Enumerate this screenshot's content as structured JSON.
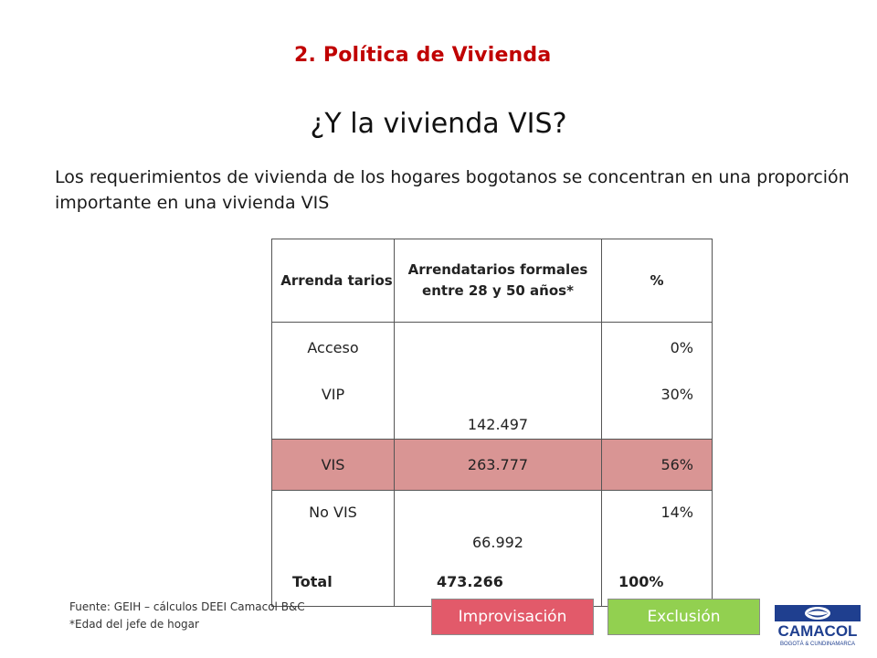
{
  "section_title": "2. Política de Vivienda",
  "main_title": "¿Y la vivienda VIS?",
  "intro_text": "Los requerimientos de vivienda de los hogares bogotanos se concentran en una proporción importante en una vivienda VIS",
  "table": {
    "headers": {
      "col1": "Arrenda tarios",
      "col2": "Arrendatarios formales entre 28 y 50 años*",
      "col3": "%"
    },
    "rows": [
      {
        "label": "Acceso",
        "value": "",
        "pct": "0%"
      },
      {
        "label": "VIP",
        "value": "142.497",
        "pct": "30%"
      },
      {
        "label": "VIS",
        "value": "263.777",
        "pct": "56%"
      },
      {
        "label": "No VIS",
        "value": "66.992",
        "pct": "14%"
      },
      {
        "label": "Total",
        "value": "473.266",
        "pct": "100%"
      }
    ],
    "highlight_color": "#d99594"
  },
  "footnotes": {
    "source": "Fuente: GEIH – cálculos DEEI Camacol B&C",
    "note": "*Edad del jefe de hogar"
  },
  "buttons": {
    "improvisacion": "Improvisación",
    "exclusion": "Exclusión"
  },
  "logo": {
    "name": "CAMACOL",
    "subtitle": "BOGOTÁ & CUNDINAMARCA"
  },
  "colors": {
    "accent_red": "#c00000",
    "button_red": "#e25a6a",
    "button_green": "#92d050",
    "logo_blue": "#1f3f8f"
  }
}
